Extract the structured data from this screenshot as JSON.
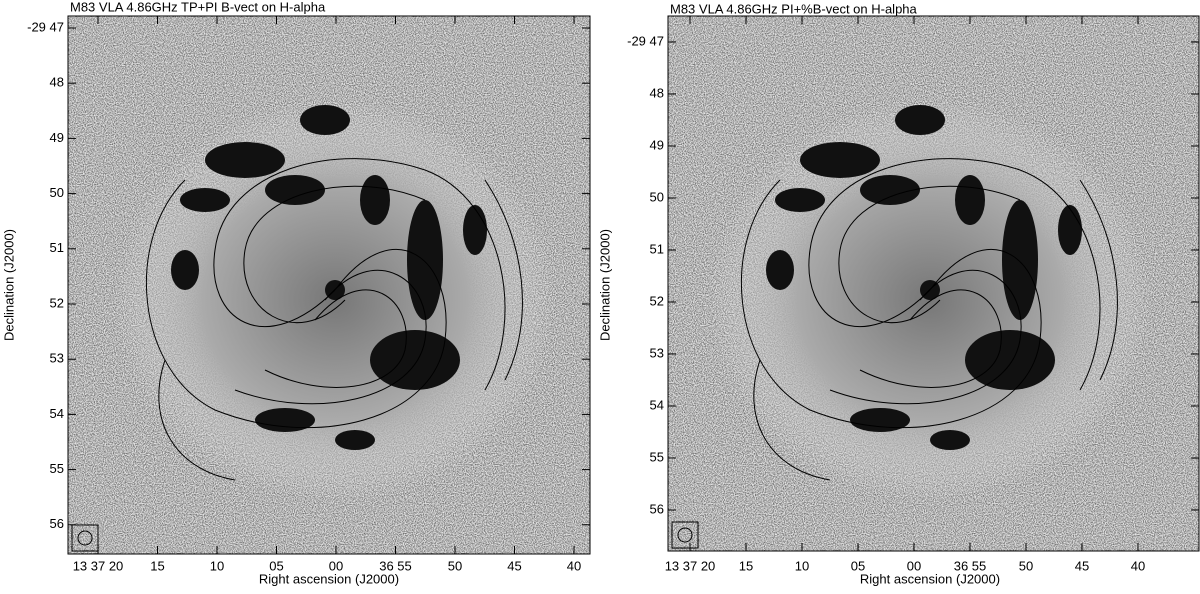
{
  "panels": [
    {
      "title": "M83 VLA 4.86GHz TP+PI B-vect on H-alpha",
      "xlabel": "Right ascension (J2000)",
      "ylabel": "Declination (J2000)",
      "xticks": [
        "13 37 20",
        "15",
        "10",
        "05",
        "00",
        "36 55",
        "50",
        "45",
        "40"
      ],
      "yticks": [
        "-29 47",
        "48",
        "49",
        "50",
        "51",
        "52",
        "53",
        "54",
        "55",
        "56"
      ]
    },
    {
      "title": "M83 VLA 4.86GHz PI+%B-vect on H-alpha",
      "xlabel": "Right ascension (J2000)",
      "ylabel": "Declination (J2000)",
      "xticks": [
        "13 37 20",
        "15",
        "10",
        "05",
        "00",
        "36 55",
        "50",
        "45",
        "40"
      ],
      "yticks": [
        "-29 47",
        "48",
        "49",
        "50",
        "51",
        "52",
        "53",
        "54",
        "55",
        "56"
      ]
    }
  ]
}
